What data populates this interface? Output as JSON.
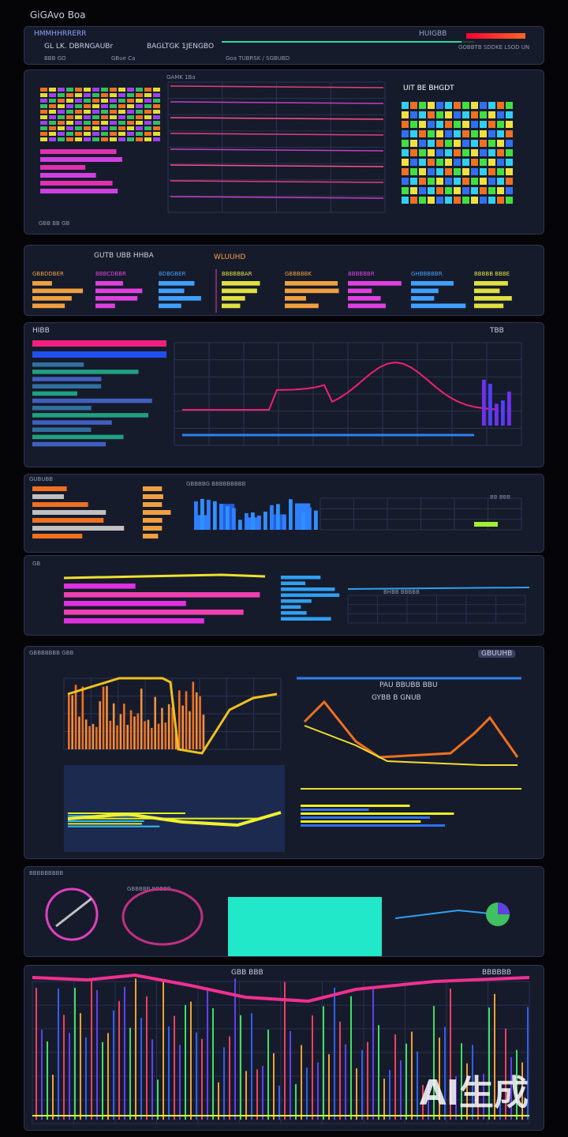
{
  "app_title": "GiGAvo Boa",
  "header": {
    "brand": "HMMHHRRERR",
    "line1": "GL LK. DBRNGAUBr",
    "line2": "BAGLTGK 1JENGBO",
    "sub_left": "BBB GO",
    "sub_mid": "GBue Ca",
    "sub_center": "Goa TUBRSK / SGBUBD",
    "right_badge": "HUIGBB",
    "right_meta": "GOBBTB SDDKE LSOD UN",
    "progress": 0.95
  },
  "panels": [
    {
      "title": "GAMK 1Ba",
      "right_title": "UIT BE BHGDT",
      "foot": "GBB BB GB"
    },
    {
      "title": "GUTB UBB HHBA",
      "badge": "WLUUHD",
      "cols": [
        "GBBDDBER",
        "BBBCDBBR",
        "BDBGBER",
        "BBBBBBAR",
        "GBBBBBK",
        "BBBBBBR",
        "GHBBBBBR",
        "BBBBB BBBE"
      ]
    },
    {
      "title": "HIBB",
      "right": "TBB"
    },
    {
      "title": "GUBUBB",
      "mid": "GBBBBG BBBBBBBBB",
      "right": "BB BBB"
    },
    {
      "title": "GB",
      "label": "BHBB BBBBB"
    },
    {
      "title": "GBBBBBBB GBB",
      "badge": "GBUUHB",
      "chart_title": "PAU BBUBB BBU",
      "chart_sub": "GYBB B GNUB"
    },
    {
      "title": "BBBBBBBBB",
      "label": "GBBBBB BBBBB"
    },
    {
      "title": "GBB BBB",
      "badge": "BBBBBB"
    }
  ],
  "watermark": "AI生成"
}
